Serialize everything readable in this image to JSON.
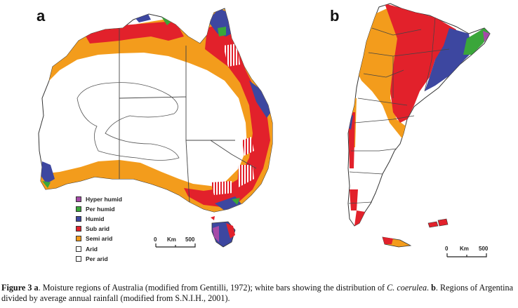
{
  "panels": {
    "a_label": "a",
    "b_label": "b"
  },
  "legend": {
    "items": [
      {
        "label": "Hyper humid",
        "color": "#a54aa8"
      },
      {
        "label": "Per humid",
        "color": "#3aa63a"
      },
      {
        "label": "Humid",
        "color": "#3d47a0"
      },
      {
        "label": "Sub arid",
        "color": "#e2212b"
      },
      {
        "label": "Semi arid",
        "color": "#f39c1c"
      },
      {
        "label": "Arid",
        "color": "#ffffff"
      },
      {
        "label": "Per arid",
        "color": "#ffffff"
      }
    ]
  },
  "scale_a": {
    "zero": "0",
    "unit": "Km",
    "max": "500"
  },
  "scale_b": {
    "zero": "0",
    "unit": "Km",
    "max": "500"
  },
  "caption": {
    "fig_label": "Figure 3",
    "part_a": "a",
    "text_a": ". Moisture regions of Australia (modified from Gentilli, 1972); white bars showing the distribution of ",
    "species": "C. coerulea",
    "sep": ". ",
    "part_b": "b",
    "text_b": ". Regions of Argentina divided by average annual rainfall (modified from S.N.I.H., 2001)."
  }
}
